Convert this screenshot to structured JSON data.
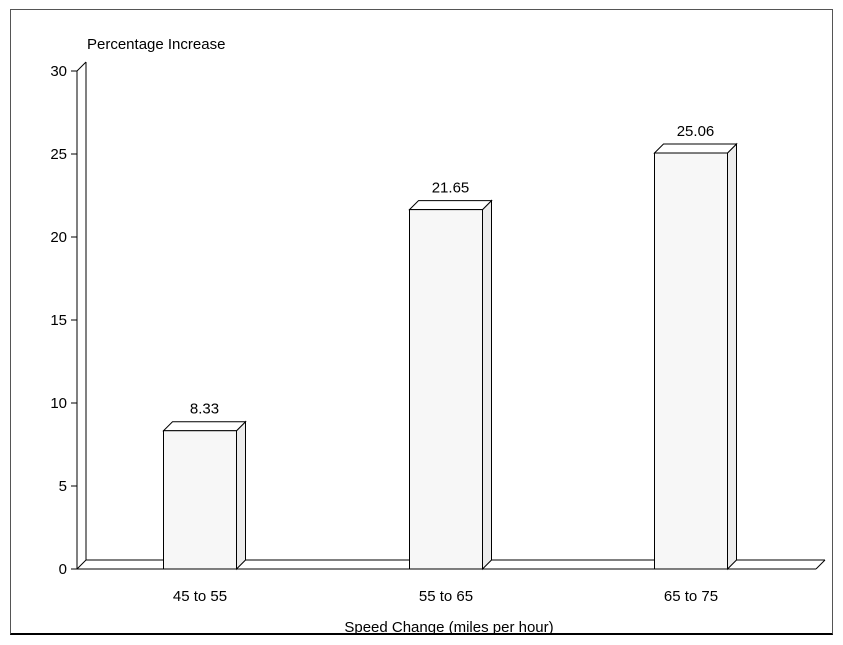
{
  "chart_data": {
    "type": "bar",
    "title": "",
    "ylabel": "Percentage Increase",
    "xlabel": "Speed Change (miles per hour)",
    "categories": [
      "45 to 55",
      "55 to 65",
      "65 to 75"
    ],
    "values": [
      8.33,
      21.65,
      25.06
    ],
    "data_labels": [
      "8.33",
      "21.65",
      "25.06"
    ],
    "ylim": [
      0,
      30
    ],
    "yticks": [
      0,
      5,
      10,
      15,
      20,
      25,
      30
    ],
    "ytick_labels": [
      "0",
      "5",
      "10",
      "15",
      "20",
      "25",
      "30"
    ],
    "grid": false,
    "legend": "none",
    "style": "3d",
    "colors": {
      "bar_fill": "#f7f7f7",
      "bar_stroke": "#000000",
      "background": "#ffffff"
    }
  }
}
